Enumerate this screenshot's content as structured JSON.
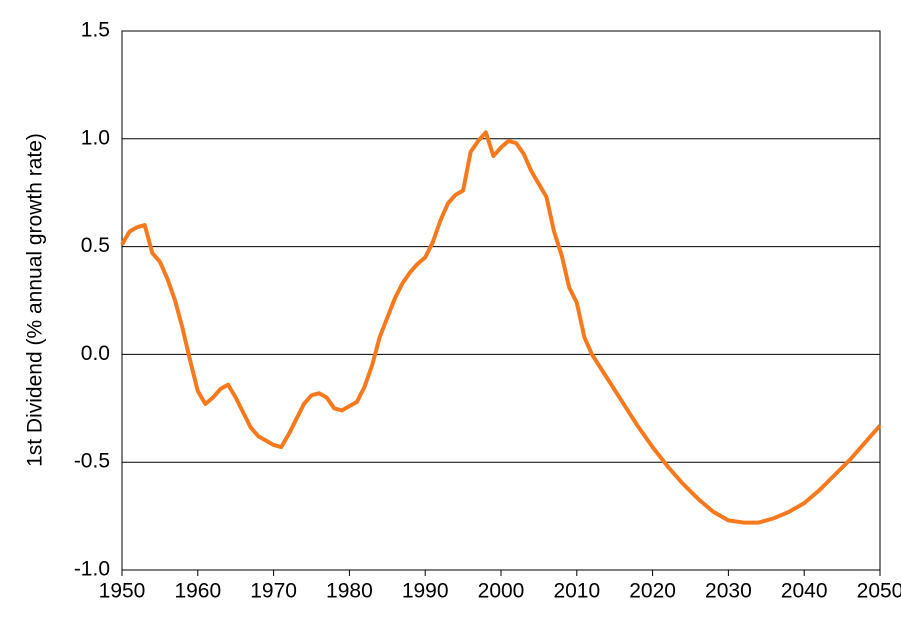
{
  "chart_data": {
    "type": "line",
    "ylabel": "1st Dividend (% annual growth rate)",
    "x": [
      1950,
      1951,
      1952,
      1953,
      1954,
      1955,
      1956,
      1957,
      1958,
      1959,
      1960,
      1961,
      1962,
      1963,
      1964,
      1965,
      1966,
      1967,
      1968,
      1969,
      1970,
      1971,
      1972,
      1973,
      1974,
      1975,
      1976,
      1977,
      1978,
      1979,
      1980,
      1981,
      1982,
      1983,
      1984,
      1985,
      1986,
      1987,
      1988,
      1989,
      1990,
      1991,
      1992,
      1993,
      1994,
      1995,
      1996,
      1997,
      1998,
      1999,
      2000,
      2001,
      2002,
      2003,
      2004,
      2005,
      2006,
      2007,
      2008,
      2009,
      2010,
      2011,
      2012,
      2014,
      2016,
      2018,
      2020,
      2022,
      2024,
      2026,
      2028,
      2030,
      2032,
      2034,
      2036,
      2038,
      2040,
      2042,
      2044,
      2046,
      2048,
      2050
    ],
    "series": [
      {
        "name": "1st Dividend",
        "color": "#f7791d",
        "values": [
          0.51,
          0.57,
          0.59,
          0.6,
          0.47,
          0.43,
          0.35,
          0.25,
          0.12,
          -0.03,
          -0.17,
          -0.23,
          -0.2,
          -0.16,
          -0.14,
          -0.2,
          -0.27,
          -0.34,
          -0.38,
          -0.4,
          -0.42,
          -0.43,
          -0.37,
          -0.3,
          -0.23,
          -0.19,
          -0.18,
          -0.2,
          -0.25,
          -0.26,
          -0.24,
          -0.22,
          -0.15,
          -0.05,
          0.08,
          0.17,
          0.26,
          0.33,
          0.38,
          0.42,
          0.45,
          0.52,
          0.62,
          0.7,
          0.74,
          0.76,
          0.94,
          0.99,
          1.03,
          0.92,
          0.96,
          0.99,
          0.98,
          0.93,
          0.85,
          0.79,
          0.73,
          0.57,
          0.46,
          0.31,
          0.24,
          0.08,
          0.0,
          -0.11,
          -0.22,
          -0.33,
          -0.43,
          -0.52,
          -0.6,
          -0.67,
          -0.73,
          -0.77,
          -0.78,
          -0.78,
          -0.76,
          -0.73,
          -0.69,
          -0.63,
          -0.56,
          -0.49,
          -0.41,
          -0.33
        ]
      }
    ],
    "xlim": [
      1950,
      2050
    ],
    "xticks": [
      1950,
      1960,
      1970,
      1980,
      1990,
      2000,
      2010,
      2020,
      2030,
      2040,
      2050
    ],
    "ylim": [
      -1,
      1.5
    ],
    "yticks": [
      {
        "value": -1,
        "label": "-1.0"
      },
      {
        "value": -0.5,
        "label": "-0.5"
      },
      {
        "value": 0,
        "label": "0.0"
      },
      {
        "value": 0.5,
        "label": "0.5"
      },
      {
        "value": 1,
        "label": "1.0"
      },
      {
        "value": 1.5,
        "label": "1.5"
      }
    ],
    "grid": true
  }
}
